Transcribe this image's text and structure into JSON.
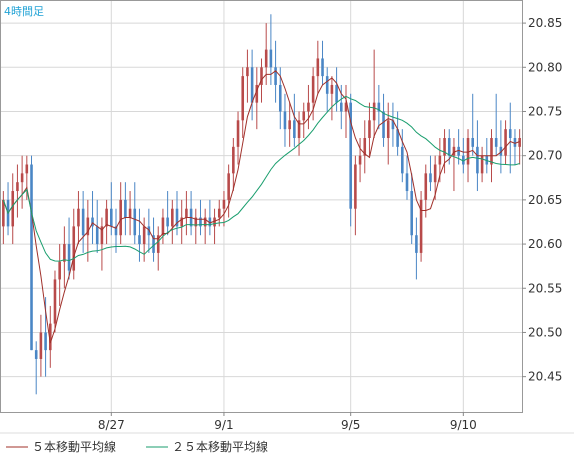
{
  "chart_data": {
    "type": "candlestick",
    "period_label": "4時間足",
    "y_ticks": [
      20.85,
      20.8,
      20.75,
      20.7,
      20.65,
      20.6,
      20.55,
      20.5,
      20.45
    ],
    "y_tick_labels": [
      "20.85",
      "20.80",
      "20.75",
      "20.70",
      "20.65",
      "20.60",
      "20.55",
      "20.50",
      "20.45"
    ],
    "ylim": [
      20.41,
      20.875
    ],
    "x_ticks": [
      {
        "index": 23,
        "label": "8/27"
      },
      {
        "index": 47,
        "label": "9/1"
      },
      {
        "index": 74,
        "label": "9/5"
      },
      {
        "index": 98,
        "label": "9/10"
      }
    ],
    "candles": [
      [
        20.62,
        20.66,
        20.6,
        20.65
      ],
      [
        20.65,
        20.67,
        20.61,
        20.62
      ],
      [
        20.62,
        20.68,
        20.6,
        20.66
      ],
      [
        20.66,
        20.69,
        20.63,
        20.67
      ],
      [
        20.67,
        20.7,
        20.64,
        20.68
      ],
      [
        20.68,
        20.7,
        20.65,
        20.69
      ],
      [
        20.69,
        20.7,
        20.48,
        20.48
      ],
      [
        20.48,
        20.49,
        20.43,
        20.47
      ],
      [
        20.47,
        20.52,
        20.45,
        20.5
      ],
      [
        20.5,
        20.54,
        20.45,
        20.48
      ],
      [
        20.48,
        20.53,
        20.46,
        20.51
      ],
      [
        20.51,
        20.57,
        20.5,
        20.56
      ],
      [
        20.56,
        20.6,
        20.53,
        20.58
      ],
      [
        20.58,
        20.62,
        20.55,
        20.6
      ],
      [
        20.6,
        20.63,
        20.56,
        20.57
      ],
      [
        20.57,
        20.64,
        20.56,
        20.62
      ],
      [
        20.62,
        20.66,
        20.6,
        20.64
      ],
      [
        20.64,
        20.66,
        20.59,
        20.61
      ],
      [
        20.61,
        20.65,
        20.58,
        20.63
      ],
      [
        20.63,
        20.66,
        20.6,
        20.62
      ],
      [
        20.62,
        20.65,
        20.59,
        20.6
      ],
      [
        20.6,
        20.63,
        20.57,
        20.62
      ],
      [
        20.62,
        20.65,
        20.6,
        20.64
      ],
      [
        20.64,
        20.67,
        20.61,
        20.62
      ],
      [
        20.62,
        20.64,
        20.59,
        20.61
      ],
      [
        20.61,
        20.67,
        20.6,
        20.65
      ],
      [
        20.65,
        20.67,
        20.61,
        20.63
      ],
      [
        20.63,
        20.66,
        20.61,
        20.64
      ],
      [
        20.64,
        20.67,
        20.6,
        20.61
      ],
      [
        20.61,
        20.64,
        20.58,
        20.6
      ],
      [
        20.6,
        20.63,
        20.58,
        20.62
      ],
      [
        20.62,
        20.64,
        20.59,
        20.61
      ],
      [
        20.61,
        20.63,
        20.58,
        20.59
      ],
      [
        20.59,
        20.62,
        20.57,
        20.61
      ],
      [
        20.61,
        20.64,
        20.6,
        20.63
      ],
      [
        20.63,
        20.66,
        20.61,
        20.62
      ],
      [
        20.62,
        20.65,
        20.6,
        20.64
      ],
      [
        20.64,
        20.66,
        20.61,
        20.62
      ],
      [
        20.62,
        20.65,
        20.6,
        20.63
      ],
      [
        20.63,
        20.66,
        20.61,
        20.64
      ],
      [
        20.64,
        20.66,
        20.61,
        20.62
      ],
      [
        20.62,
        20.64,
        20.6,
        20.63
      ],
      [
        20.63,
        20.65,
        20.61,
        20.62
      ],
      [
        20.62,
        20.64,
        20.6,
        20.63
      ],
      [
        20.63,
        20.65,
        20.61,
        20.62
      ],
      [
        20.62,
        20.64,
        20.6,
        20.63
      ],
      [
        20.63,
        20.65,
        20.62,
        20.64
      ],
      [
        20.64,
        20.66,
        20.62,
        20.65
      ],
      [
        20.65,
        20.69,
        20.63,
        20.68
      ],
      [
        20.68,
        20.72,
        20.66,
        20.71
      ],
      [
        20.71,
        20.75,
        20.69,
        20.74
      ],
      [
        20.74,
        20.8,
        20.72,
        20.79
      ],
      [
        20.79,
        20.82,
        20.76,
        20.8
      ],
      [
        20.8,
        20.82,
        20.74,
        20.76
      ],
      [
        20.76,
        20.8,
        20.73,
        20.78
      ],
      [
        20.78,
        20.81,
        20.76,
        20.8
      ],
      [
        20.8,
        20.85,
        20.78,
        20.82
      ],
      [
        20.82,
        20.86,
        20.78,
        20.8
      ],
      [
        20.8,
        20.83,
        20.76,
        20.78
      ],
      [
        20.78,
        20.8,
        20.73,
        20.75
      ],
      [
        20.75,
        20.77,
        20.71,
        20.73
      ],
      [
        20.73,
        20.76,
        20.71,
        20.74
      ],
      [
        20.74,
        20.77,
        20.71,
        20.72
      ],
      [
        20.72,
        20.75,
        20.7,
        20.74
      ],
      [
        20.74,
        20.76,
        20.72,
        20.75
      ],
      [
        20.75,
        20.78,
        20.73,
        20.76
      ],
      [
        20.76,
        20.8,
        20.74,
        20.79
      ],
      [
        20.79,
        20.83,
        20.77,
        20.81
      ],
      [
        20.81,
        20.83,
        20.78,
        20.79
      ],
      [
        20.79,
        20.8,
        20.75,
        20.77
      ],
      [
        20.77,
        20.79,
        20.74,
        20.78
      ],
      [
        20.78,
        20.8,
        20.75,
        20.76
      ],
      [
        20.76,
        20.78,
        20.73,
        20.75
      ],
      [
        20.75,
        20.78,
        20.72,
        20.76
      ],
      [
        20.76,
        20.77,
        20.62,
        20.64
      ],
      [
        20.64,
        20.7,
        20.61,
        20.69
      ],
      [
        20.69,
        20.72,
        20.67,
        20.7
      ],
      [
        20.7,
        20.74,
        20.68,
        20.72
      ],
      [
        20.72,
        20.76,
        20.7,
        20.74
      ],
      [
        20.74,
        20.82,
        20.72,
        20.76
      ],
      [
        20.76,
        20.78,
        20.73,
        20.75
      ],
      [
        20.75,
        20.77,
        20.71,
        20.72
      ],
      [
        20.72,
        20.76,
        20.69,
        20.74
      ],
      [
        20.74,
        20.76,
        20.71,
        20.73
      ],
      [
        20.73,
        20.75,
        20.7,
        20.71
      ],
      [
        20.71,
        20.73,
        20.67,
        20.68
      ],
      [
        20.68,
        20.7,
        20.65,
        20.66
      ],
      [
        20.66,
        20.68,
        20.6,
        20.61
      ],
      [
        20.61,
        20.63,
        20.56,
        20.59
      ],
      [
        20.59,
        20.66,
        20.58,
        20.65
      ],
      [
        20.65,
        20.69,
        20.63,
        20.68
      ],
      [
        20.68,
        20.7,
        20.66,
        20.67
      ],
      [
        20.67,
        20.7,
        20.65,
        20.69
      ],
      [
        20.69,
        20.72,
        20.67,
        20.7
      ],
      [
        20.7,
        20.73,
        20.68,
        20.72
      ],
      [
        20.72,
        20.73,
        20.69,
        20.7
      ],
      [
        20.7,
        20.72,
        20.66,
        20.71
      ],
      [
        20.71,
        20.73,
        20.69,
        20.7
      ],
      [
        20.7,
        20.72,
        20.68,
        20.69
      ],
      [
        20.69,
        20.73,
        20.67,
        20.72
      ],
      [
        20.72,
        20.77,
        20.7,
        20.71
      ],
      [
        20.71,
        20.74,
        20.66,
        20.68
      ],
      [
        20.68,
        20.71,
        20.67,
        20.7
      ],
      [
        20.7,
        20.72,
        20.68,
        20.69
      ],
      [
        20.69,
        20.73,
        20.67,
        20.72
      ],
      [
        20.72,
        20.77,
        20.7,
        20.71
      ],
      [
        20.71,
        20.74,
        20.68,
        20.7
      ],
      [
        20.7,
        20.74,
        20.69,
        20.73
      ],
      [
        20.73,
        20.76,
        20.68,
        20.72
      ],
      [
        20.72,
        20.73,
        20.69,
        20.71
      ],
      [
        20.71,
        20.73,
        20.69,
        20.72
      ]
    ],
    "series": [
      {
        "name": "５本移動平均線",
        "period": 5,
        "color": "#a0302a"
      },
      {
        "name": "２５本移動平均線",
        "period": 25,
        "color": "#1a9e6e"
      }
    ],
    "colors": {
      "up": "#b84a4a",
      "down": "#4a86c5",
      "grid": "#d8d8d8",
      "axis": "#888888"
    },
    "grid": true,
    "legend_position": "bottom-left"
  }
}
